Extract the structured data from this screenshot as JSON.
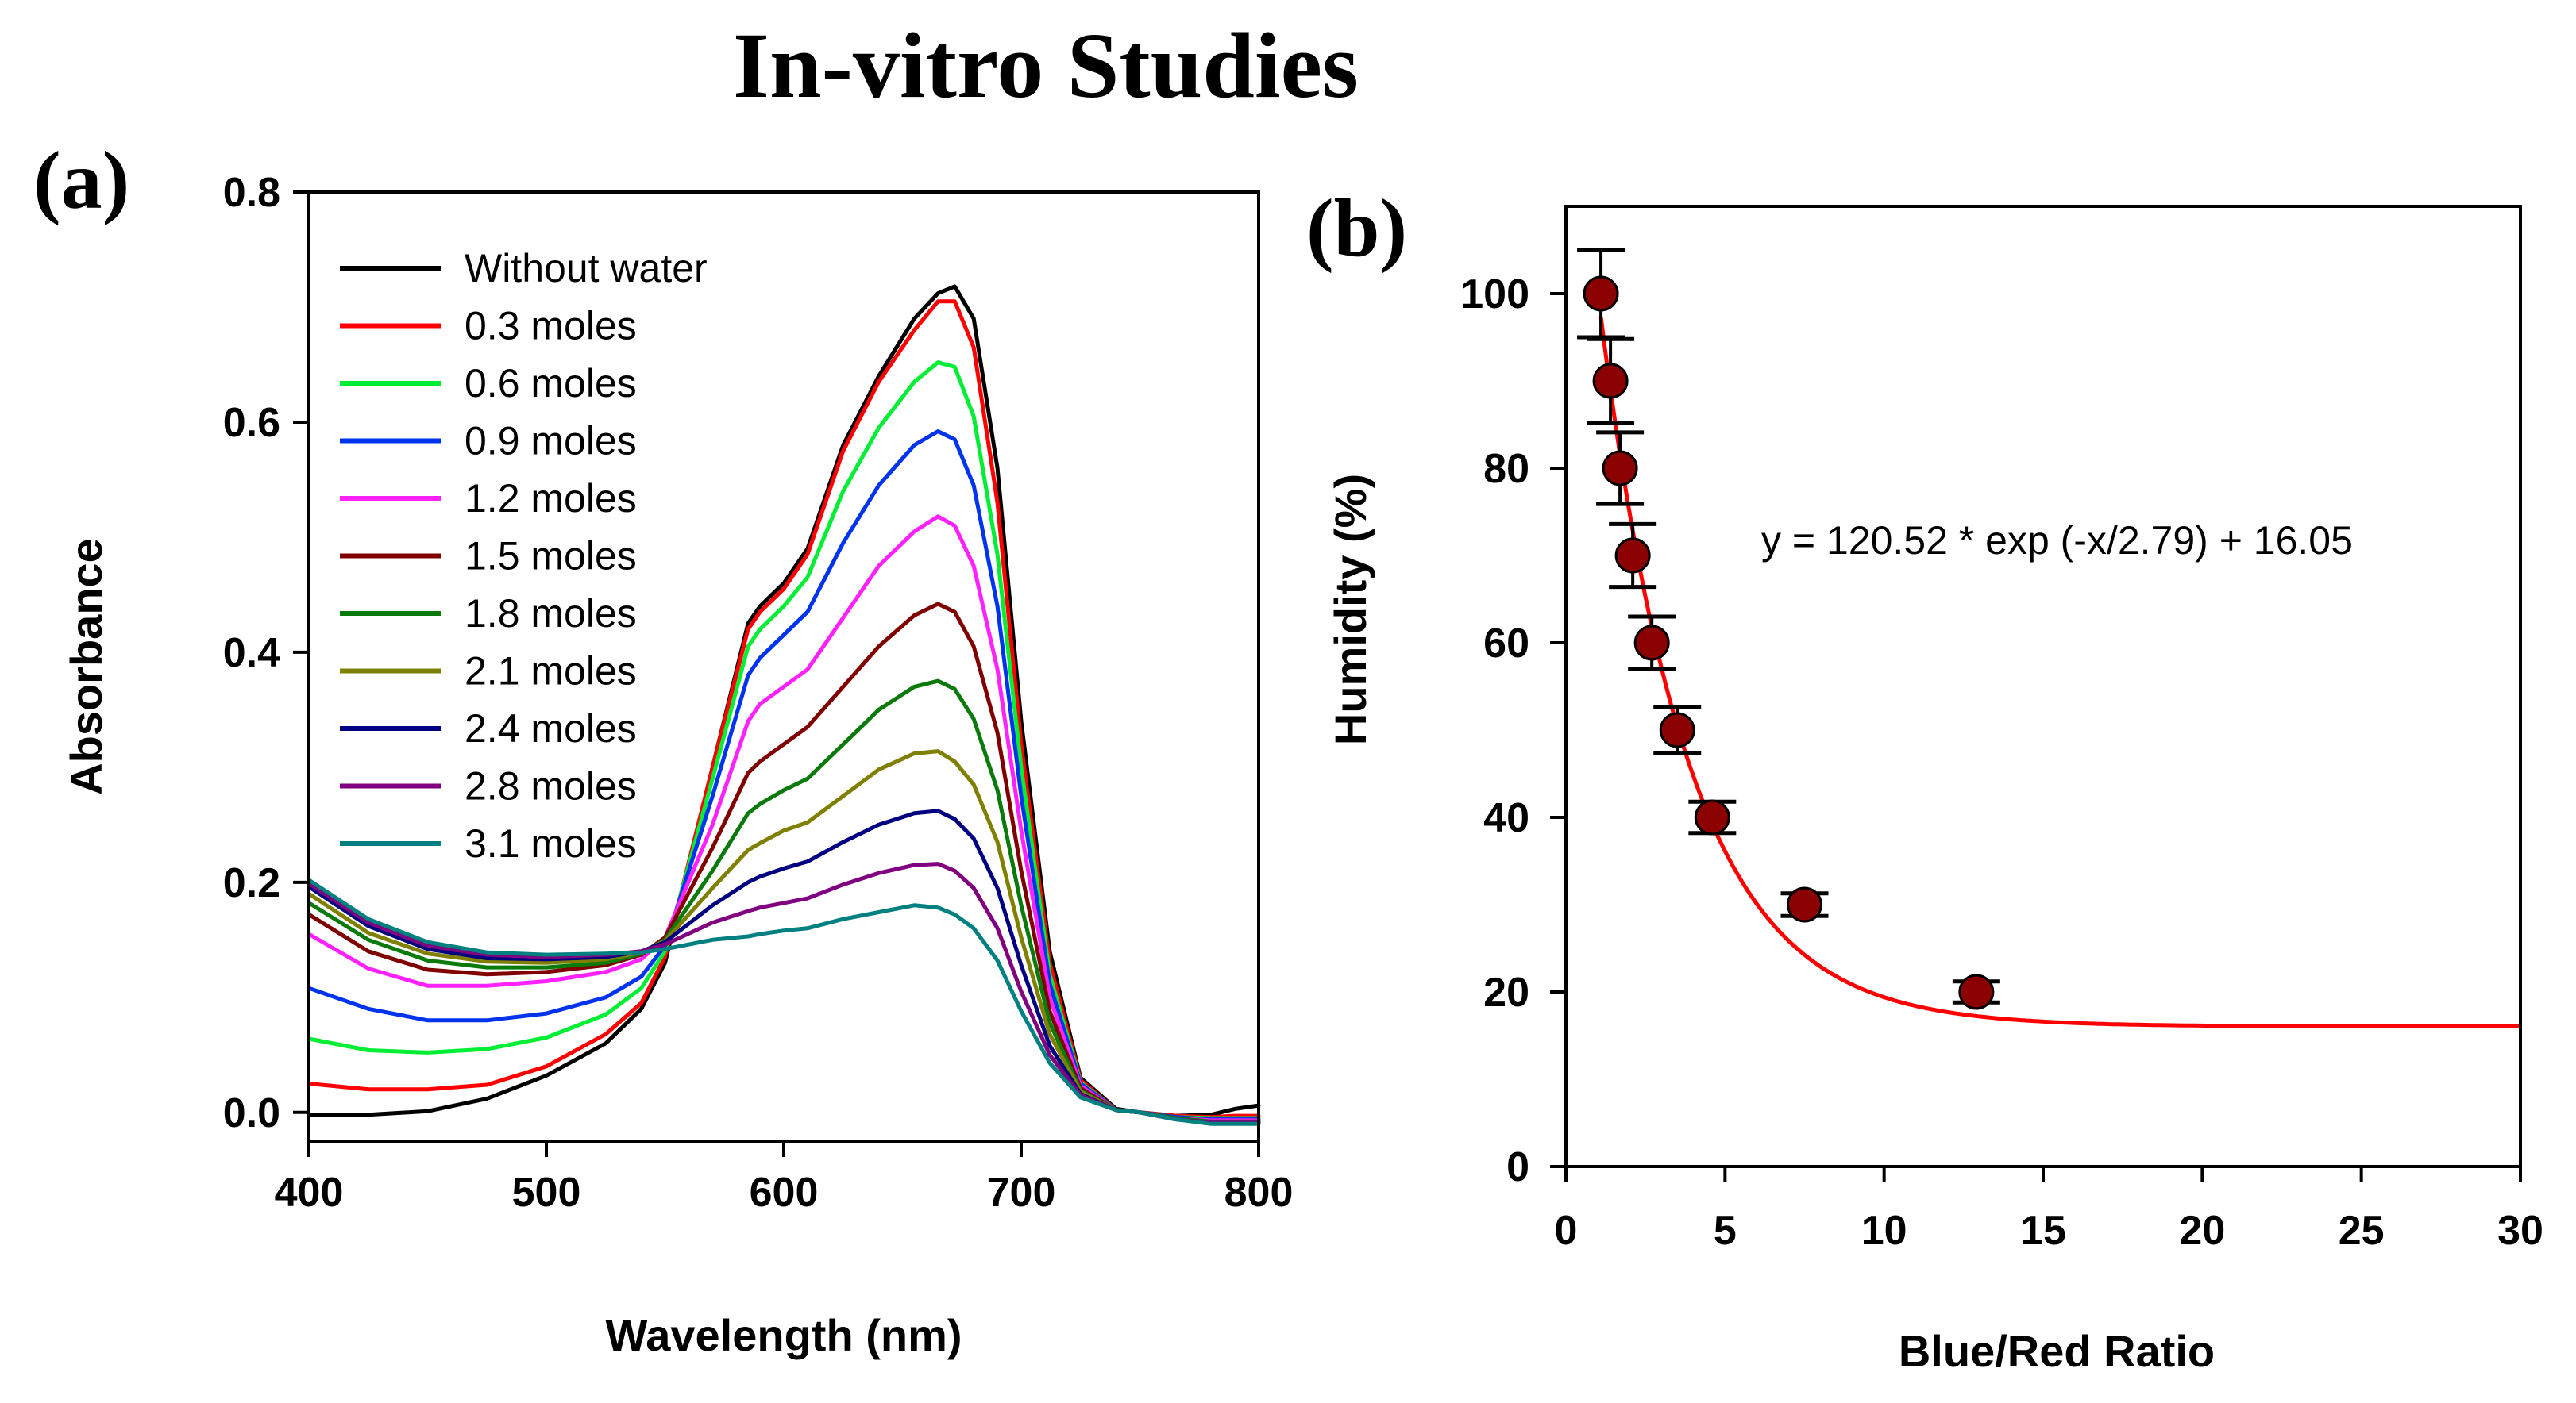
{
  "title": "In-vitro Studies",
  "chart_data": [
    {
      "panel": "(a)",
      "type": "line",
      "xlabel": "Wavelength (nm)",
      "ylabel": "Absorbance",
      "xlim": [
        400,
        800
      ],
      "ylim": [
        -0.025,
        0.8
      ],
      "xticks": [
        "400",
        "500",
        "600",
        "700",
        "800"
      ],
      "yticks": [
        "0.0",
        "0.2",
        "0.4",
        "0.6",
        "0.8"
      ],
      "x": [
        400,
        425,
        450,
        475,
        500,
        525,
        540,
        550,
        570,
        585,
        590,
        600,
        610,
        625,
        640,
        655,
        665,
        672,
        680,
        690,
        700,
        712,
        725,
        740,
        750,
        765,
        780,
        790,
        800
      ],
      "series": [
        {
          "name": "Without water",
          "color": "#000000",
          "values": [
            -0.002,
            -0.002,
            0.001,
            0.012,
            0.032,
            0.06,
            0.09,
            0.13,
            0.3,
            0.425,
            0.44,
            0.46,
            0.49,
            0.58,
            0.64,
            0.69,
            0.712,
            0.718,
            0.69,
            0.56,
            0.34,
            0.14,
            0.03,
            0.003,
            0.0,
            -0.003,
            -0.002,
            0.003,
            0.006
          ]
        },
        {
          "name": "0.3 moles",
          "color": "#ff0000",
          "values": [
            0.025,
            0.02,
            0.02,
            0.024,
            0.04,
            0.068,
            0.095,
            0.135,
            0.3,
            0.42,
            0.435,
            0.455,
            0.485,
            0.575,
            0.635,
            0.68,
            0.705,
            0.705,
            0.665,
            0.53,
            0.32,
            0.13,
            0.028,
            0.002,
            0.0,
            -0.003,
            -0.004,
            -0.003,
            -0.003
          ]
        },
        {
          "name": "0.6 moles",
          "color": "#00ee33",
          "values": [
            0.064,
            0.054,
            0.052,
            0.055,
            0.065,
            0.085,
            0.108,
            0.14,
            0.29,
            0.405,
            0.42,
            0.44,
            0.465,
            0.54,
            0.595,
            0.635,
            0.652,
            0.648,
            0.605,
            0.485,
            0.3,
            0.12,
            0.026,
            0.002,
            0.0,
            -0.004,
            -0.005,
            -0.005,
            -0.005
          ]
        },
        {
          "name": "0.9 moles",
          "color": "#0033ee",
          "values": [
            0.108,
            0.09,
            0.08,
            0.08,
            0.086,
            0.1,
            0.118,
            0.145,
            0.275,
            0.38,
            0.395,
            0.415,
            0.435,
            0.495,
            0.545,
            0.58,
            0.592,
            0.585,
            0.545,
            0.44,
            0.275,
            0.112,
            0.025,
            0.002,
            0.0,
            -0.004,
            -0.006,
            -0.006,
            -0.006
          ]
        },
        {
          "name": "1.2 moles",
          "color": "#ff22ff",
          "values": [
            0.155,
            0.125,
            0.11,
            0.11,
            0.114,
            0.122,
            0.133,
            0.152,
            0.25,
            0.34,
            0.355,
            0.37,
            0.385,
            0.43,
            0.475,
            0.505,
            0.518,
            0.51,
            0.475,
            0.385,
            0.245,
            0.1,
            0.023,
            0.002,
            0.0,
            -0.005,
            -0.007,
            -0.007,
            -0.007
          ]
        },
        {
          "name": "1.5 moles",
          "color": "#800000",
          "values": [
            0.172,
            0.14,
            0.124,
            0.12,
            0.122,
            0.128,
            0.137,
            0.152,
            0.23,
            0.295,
            0.305,
            0.32,
            0.335,
            0.37,
            0.405,
            0.432,
            0.442,
            0.435,
            0.405,
            0.33,
            0.21,
            0.088,
            0.021,
            0.002,
            0.0,
            -0.005,
            -0.008,
            -0.008,
            -0.008
          ]
        },
        {
          "name": "1.8 moles",
          "color": "#0a7a0a",
          "values": [
            0.182,
            0.15,
            0.132,
            0.126,
            0.126,
            0.13,
            0.138,
            0.15,
            0.21,
            0.26,
            0.268,
            0.28,
            0.29,
            0.32,
            0.35,
            0.37,
            0.375,
            0.368,
            0.342,
            0.28,
            0.18,
            0.078,
            0.019,
            0.002,
            0.0,
            -0.005,
            -0.008,
            -0.008,
            -0.008
          ]
        },
        {
          "name": "2.1 moles",
          "color": "#808000",
          "values": [
            0.19,
            0.156,
            0.138,
            0.131,
            0.13,
            0.133,
            0.139,
            0.149,
            0.195,
            0.228,
            0.234,
            0.245,
            0.252,
            0.275,
            0.298,
            0.312,
            0.314,
            0.305,
            0.285,
            0.235,
            0.152,
            0.068,
            0.018,
            0.002,
            0.0,
            -0.006,
            -0.009,
            -0.009,
            -0.009
          ]
        },
        {
          "name": "2.4 moles",
          "color": "#000080",
          "values": [
            0.196,
            0.162,
            0.142,
            0.134,
            0.133,
            0.135,
            0.14,
            0.148,
            0.18,
            0.2,
            0.205,
            0.212,
            0.218,
            0.235,
            0.25,
            0.26,
            0.262,
            0.255,
            0.238,
            0.195,
            0.128,
            0.058,
            0.016,
            0.002,
            0.0,
            -0.006,
            -0.009,
            -0.009,
            -0.009
          ]
        },
        {
          "name": "2.8 moles",
          "color": "#800080",
          "values": [
            0.199,
            0.165,
            0.145,
            0.137,
            0.135,
            0.137,
            0.14,
            0.146,
            0.165,
            0.175,
            0.178,
            0.182,
            0.186,
            0.198,
            0.208,
            0.215,
            0.216,
            0.21,
            0.195,
            0.16,
            0.105,
            0.05,
            0.015,
            0.002,
            0.0,
            -0.006,
            -0.009,
            -0.009,
            -0.009
          ]
        },
        {
          "name": "3.1 moles",
          "color": "#008080",
          "values": [
            0.202,
            0.168,
            0.148,
            0.139,
            0.137,
            0.138,
            0.139,
            0.142,
            0.15,
            0.153,
            0.155,
            0.158,
            0.16,
            0.168,
            0.174,
            0.18,
            0.178,
            0.172,
            0.16,
            0.132,
            0.088,
            0.043,
            0.013,
            0.002,
            0.0,
            -0.006,
            -0.01,
            -0.01,
            -0.01
          ]
        }
      ]
    },
    {
      "panel": "(b)",
      "type": "scatter",
      "xlabel": "Blue/Red Ratio",
      "ylabel": "Humidity (%)",
      "xlim": [
        0,
        30
      ],
      "ylim": [
        0,
        110
      ],
      "xticks": [
        "0",
        "5",
        "10",
        "15",
        "20",
        "25",
        "30"
      ],
      "yticks": [
        "0",
        "20",
        "40",
        "60",
        "80",
        "100"
      ],
      "points": [
        {
          "x": 1.1,
          "y": 100,
          "err": 5
        },
        {
          "x": 1.4,
          "y": 90,
          "err": 4.8
        },
        {
          "x": 1.7,
          "y": 80,
          "err": 4.1
        },
        {
          "x": 2.1,
          "y": 70,
          "err": 3.6
        },
        {
          "x": 2.7,
          "y": 60,
          "err": 3.0
        },
        {
          "x": 3.5,
          "y": 50,
          "err": 2.6
        },
        {
          "x": 4.6,
          "y": 40,
          "err": 1.8
        },
        {
          "x": 7.5,
          "y": 30,
          "err": 1.3
        },
        {
          "x": 12.9,
          "y": 20,
          "err": 1.2
        }
      ],
      "marker_color": "#8b0000",
      "fit": {
        "a": 120.52,
        "b": 2.79,
        "c": 16.05,
        "x_start": 1.1,
        "x_end": 30,
        "color": "#ff0000"
      },
      "equation": "y = 120.52 * exp (-x/2.79) + 16.05"
    }
  ]
}
